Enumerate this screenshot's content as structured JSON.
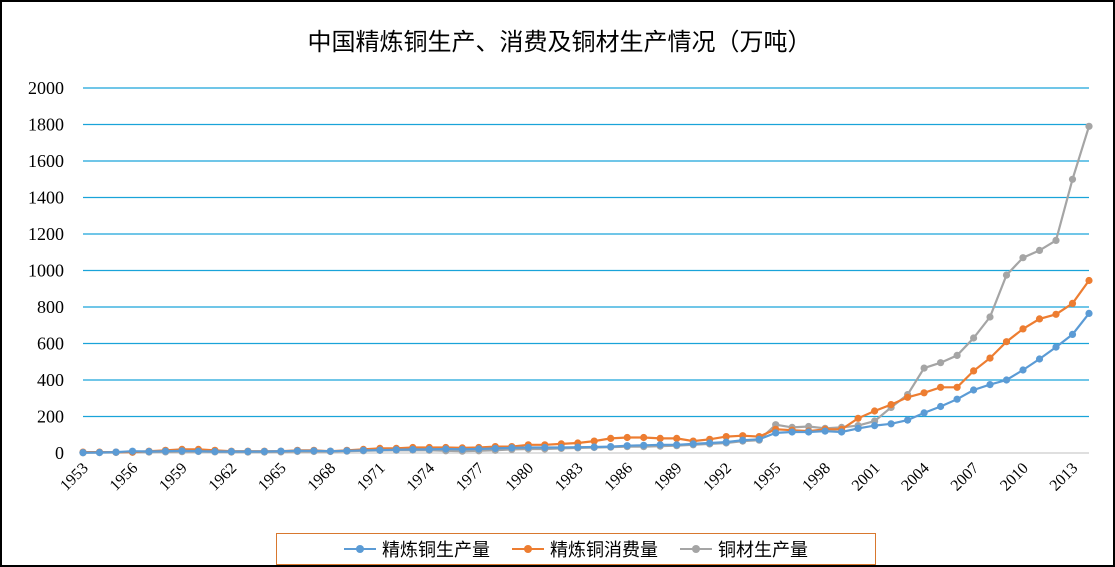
{
  "chart_data": {
    "type": "line",
    "title": "中国精炼铜生产、消费及铜材生产情况（万吨）",
    "xlabel": "",
    "ylabel": "",
    "ylim": [
      0,
      2000
    ],
    "yticks": [
      0,
      200,
      400,
      600,
      800,
      1000,
      1200,
      1400,
      1600,
      1800,
      2000
    ],
    "x_tick_labels": [
      "1953",
      "1956",
      "1959",
      "1962",
      "1965",
      "1968",
      "1971",
      "1974",
      "1977",
      "1980",
      "1983",
      "1986",
      "1989",
      "1992",
      "1995",
      "1998",
      "2001",
      "2004",
      "2007",
      "2010",
      "2013"
    ],
    "x": [
      1953,
      1954,
      1955,
      1956,
      1957,
      1958,
      1959,
      1960,
      1961,
      1962,
      1963,
      1964,
      1965,
      1966,
      1967,
      1968,
      1969,
      1970,
      1971,
      1972,
      1973,
      1974,
      1975,
      1976,
      1977,
      1978,
      1979,
      1980,
      1981,
      1982,
      1983,
      1984,
      1985,
      1986,
      1987,
      1988,
      1989,
      1990,
      1991,
      1992,
      1993,
      1994,
      1995,
      1996,
      1997,
      1998,
      1999,
      2000,
      2001,
      2002,
      2003,
      2004,
      2005,
      2006,
      2007,
      2008,
      2009,
      2010,
      2011,
      2012,
      2013,
      2014
    ],
    "grid": true,
    "legend_position": "bottom",
    "series": [
      {
        "name": "精炼铜生产量",
        "color": "#5b9bd5",
        "values": [
          2,
          3,
          5,
          10,
          8,
          10,
          12,
          10,
          8,
          8,
          8,
          8,
          10,
          12,
          12,
          10,
          12,
          15,
          16,
          18,
          20,
          20,
          22,
          20,
          22,
          25,
          28,
          30,
          30,
          30,
          32,
          33,
          35,
          40,
          42,
          45,
          45,
          50,
          55,
          60,
          70,
          75,
          110,
          115,
          115,
          120,
          115,
          135,
          150,
          160,
          180,
          220,
          255,
          295,
          345,
          375,
          400,
          455,
          515,
          580,
          650,
          765
        ],
        "name_bind": "legend.items.0.label"
      },
      {
        "name": "精炼铜消费量",
        "color": "#ed7d31",
        "values": [
          5,
          5,
          5,
          5,
          10,
          15,
          20,
          20,
          15,
          10,
          10,
          10,
          10,
          15,
          15,
          10,
          15,
          20,
          25,
          25,
          30,
          30,
          30,
          28,
          30,
          35,
          35,
          45,
          45,
          50,
          55,
          65,
          80,
          85,
          85,
          80,
          80,
          65,
          75,
          90,
          95,
          90,
          130,
          125,
          120,
          130,
          130,
          190,
          230,
          265,
          305,
          330,
          360,
          360,
          450,
          520,
          610,
          680,
          735,
          760,
          820,
          945
        ],
        "name_bind": "legend.items.1.label"
      },
      {
        "name": "铜材生产量",
        "color": "#a5a5a5",
        "values": [
          1,
          2,
          3,
          4,
          5,
          6,
          7,
          8,
          6,
          5,
          5,
          5,
          6,
          8,
          8,
          8,
          10,
          12,
          14,
          15,
          16,
          15,
          12,
          10,
          12,
          15,
          20,
          22,
          22,
          25,
          28,
          30,
          32,
          35,
          35,
          38,
          40,
          45,
          50,
          55,
          65,
          70,
          155,
          140,
          145,
          135,
          140,
          150,
          175,
          250,
          320,
          465,
          495,
          535,
          630,
          745,
          975,
          1070,
          1110,
          1165,
          1500,
          1790
        ],
        "name_bind": "legend.items.2.label"
      }
    ]
  },
  "legend": {
    "items": [
      {
        "label": "精炼铜生产量",
        "color": "#5b9bd5"
      },
      {
        "label": "精炼铜消费量",
        "color": "#ed7d31"
      },
      {
        "label": "铜材生产量",
        "color": "#a5a5a5"
      }
    ]
  }
}
